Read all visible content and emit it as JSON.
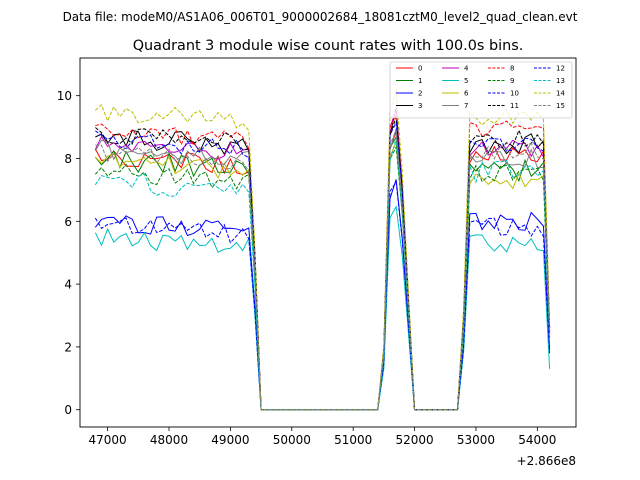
{
  "chart_data": {
    "type": "line",
    "suptitle": "Data file: modeM0/AS1A06_006T01_9000002684_18081cztM0_level2_quad_clean.evt",
    "title": "Quadrant 3 module wise count rates with 100.0s bins.",
    "xlabel": "",
    "ylabel": "",
    "x_offset_label": "+2.866e8",
    "xlim": [
      46550,
      54630
    ],
    "ylim": [
      -0.55,
      11.2
    ],
    "xticks": [
      47000,
      48000,
      49000,
      50000,
      51000,
      52000,
      53000,
      54000
    ],
    "yticks": [
      0,
      2,
      4,
      6,
      8,
      10
    ],
    "xtick_labels": [
      "47000",
      "48000",
      "49000",
      "50000",
      "51000",
      "52000",
      "53000",
      "54000"
    ],
    "ytick_labels": [
      "0",
      "2",
      "4",
      "6",
      "8",
      "10"
    ],
    "legend_placement": "top-right",
    "segments": [
      {
        "start": 46800,
        "end": 49400,
        "step": 100
      },
      {
        "start": 49500,
        "end": 51400,
        "step": 100
      },
      {
        "start": 51500,
        "end": 51800,
        "step": 100
      },
      {
        "start": 52000,
        "end": 52700,
        "step": 100
      },
      {
        "start": 52800,
        "end": 54200,
        "step": 100
      }
    ],
    "series": [
      {
        "name": "0",
        "color": "#ff0000",
        "dash": "solid",
        "base": 8.1,
        "late": 8.1,
        "peak": 8.9,
        "end": 2.5,
        "amp": 0.3
      },
      {
        "name": "1",
        "color": "#008000",
        "dash": "solid",
        "base": 8.0,
        "late": 7.6,
        "peak": 9.0,
        "end": 2.4,
        "amp": 0.35
      },
      {
        "name": "2",
        "color": "#0000ff",
        "dash": "solid",
        "base": 6.0,
        "late": 6.0,
        "peak": 7.4,
        "end": 1.9,
        "amp": 0.3
      },
      {
        "name": "3",
        "color": "#000000",
        "dash": "solid",
        "base": 8.7,
        "late": 8.5,
        "peak": 9.6,
        "end": 2.6,
        "amp": 0.35
      },
      {
        "name": "4",
        "color": "#bf00bf",
        "dash": "solid",
        "base": 8.5,
        "late": 8.3,
        "peak": 9.6,
        "end": 2.6,
        "amp": 0.3
      },
      {
        "name": "5",
        "color": "#00bfbf",
        "dash": "solid",
        "base": 5.5,
        "late": 5.3,
        "peak": 6.6,
        "end": 1.3,
        "amp": 0.3
      },
      {
        "name": "6",
        "color": "#bfbf00",
        "dash": "solid",
        "base": 7.9,
        "late": 7.3,
        "peak": 8.6,
        "end": 2.3,
        "amp": 0.3
      },
      {
        "name": "7",
        "color": "#808080",
        "dash": "solid",
        "base": 8.3,
        "late": 8.0,
        "peak": 9.0,
        "end": 2.4,
        "amp": 0.3
      },
      {
        "name": "8",
        "color": "#ff0000",
        "dash": "dashed",
        "base": 8.9,
        "late": 8.9,
        "peak": 9.6,
        "end": 2.6,
        "amp": 0.3
      },
      {
        "name": "9",
        "color": "#008000",
        "dash": "dashed",
        "base": 7.6,
        "late": 7.5,
        "peak": 8.7,
        "end": 2.3,
        "amp": 0.3
      },
      {
        "name": "10",
        "color": "#0000ff",
        "dash": "dashed",
        "base": 5.9,
        "late": 5.8,
        "peak": 7.4,
        "end": 1.8,
        "amp": 0.3
      },
      {
        "name": "11",
        "color": "#000000",
        "dash": "dashed",
        "base": 8.8,
        "late": 8.6,
        "peak": 9.5,
        "end": 2.6,
        "amp": 0.3
      },
      {
        "name": "12",
        "color": "#0000ff",
        "dash": "dashed",
        "base": 8.6,
        "late": 8.5,
        "peak": 9.4,
        "end": 2.5,
        "amp": 0.3
      },
      {
        "name": "13",
        "color": "#00bfbf",
        "dash": "dashed",
        "base": 7.3,
        "late": 7.6,
        "peak": 8.8,
        "end": 2.2,
        "amp": 0.35
      },
      {
        "name": "14",
        "color": "#bfbf00",
        "dash": "dashed",
        "base": 9.5,
        "late": 9.3,
        "peak": 10.3,
        "end": 2.8,
        "amp": 0.3
      },
      {
        "name": "15",
        "color": "#808080",
        "dash": "dashed",
        "base": 8.2,
        "late": 8.2,
        "peak": 9.1,
        "end": 2.5,
        "amp": 0.3
      }
    ]
  }
}
